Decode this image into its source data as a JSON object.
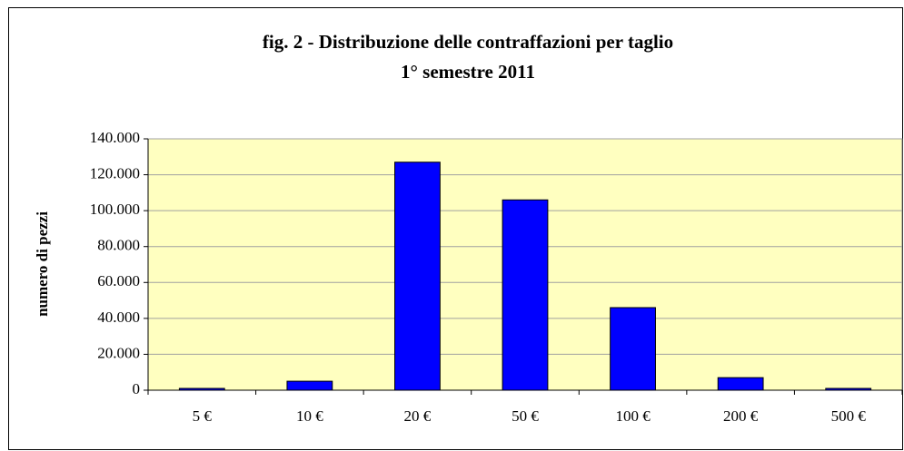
{
  "chart_data": {
    "type": "bar",
    "title": "fig. 2 - Distribuzione delle contraffazioni per taglio",
    "subtitle": "1° semestre 2011",
    "y_label": "numero di pezzi",
    "categories": [
      "5 €",
      "10 €",
      "20 €",
      "50 €",
      "100 €",
      "200 €",
      "500 €"
    ],
    "values": [
      1000,
      5000,
      127000,
      106000,
      46000,
      7000,
      1000
    ],
    "color": "#0000ff",
    "ylim": [
      0,
      140000
    ],
    "yticks": [
      0,
      {
        "value": 20000,
        "label": "20.000"
      },
      {
        "value": 40000,
        "label": "40.000"
      },
      {
        "value": 60000,
        "label": "60.000"
      },
      {
        "value": 80000,
        "label": "80.000"
      },
      {
        "value": 100000,
        "label": "100.000"
      },
      {
        "value": 120000,
        "label": "120.000"
      },
      {
        "value": 140000,
        "label": "140.000"
      }
    ],
    "grid": true
  }
}
